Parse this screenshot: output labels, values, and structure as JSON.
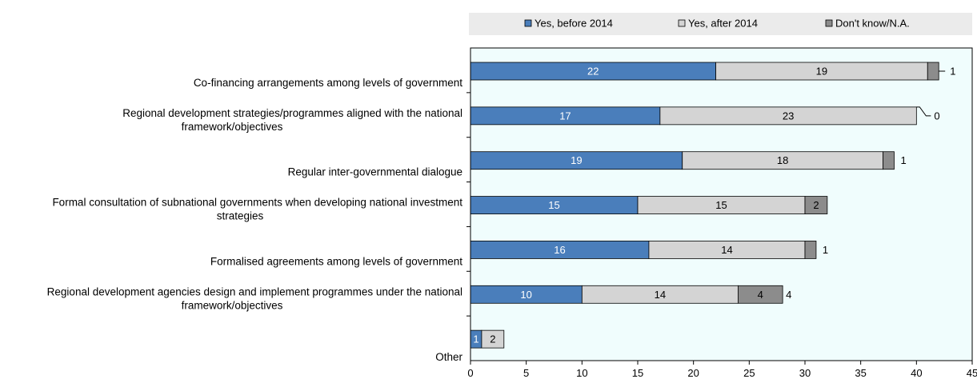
{
  "chart_data": {
    "type": "bar",
    "orientation": "horizontal",
    "stacked": true,
    "categories": [
      [
        "Co-financing arrangements among levels of government"
      ],
      [
        "Regional development strategies/programmes aligned with the national",
        "framework/objectives"
      ],
      [
        "Regular inter-governmental dialogue"
      ],
      [
        "Formal consultation of subnational governments when developing national investment",
        "strategies"
      ],
      [
        "Formalised agreements among levels of government"
      ],
      [
        "Regional development agencies design and implement programmes under the national",
        "framework/objectives"
      ],
      [
        "Other"
      ]
    ],
    "series": [
      {
        "name": "Yes, before 2014",
        "color": "#4a7ebb",
        "values": [
          22,
          17,
          19,
          15,
          16,
          10,
          1
        ]
      },
      {
        "name": "Yes, after 2014",
        "color": "#d4d4d4",
        "values": [
          19,
          23,
          18,
          15,
          14,
          14,
          2
        ]
      },
      {
        "name": "Don't know/N.A.",
        "color": "#8c8c8c",
        "values": [
          1,
          0,
          1,
          2,
          1,
          4,
          0
        ]
      }
    ],
    "xlim": [
      0,
      45
    ],
    "xticks": [
      0,
      5,
      10,
      15,
      20,
      25,
      30,
      35,
      40,
      45
    ],
    "legend_position": "top",
    "grid": false,
    "plot_background": "#f0fdfd",
    "legend_background": "#ebebeb"
  }
}
